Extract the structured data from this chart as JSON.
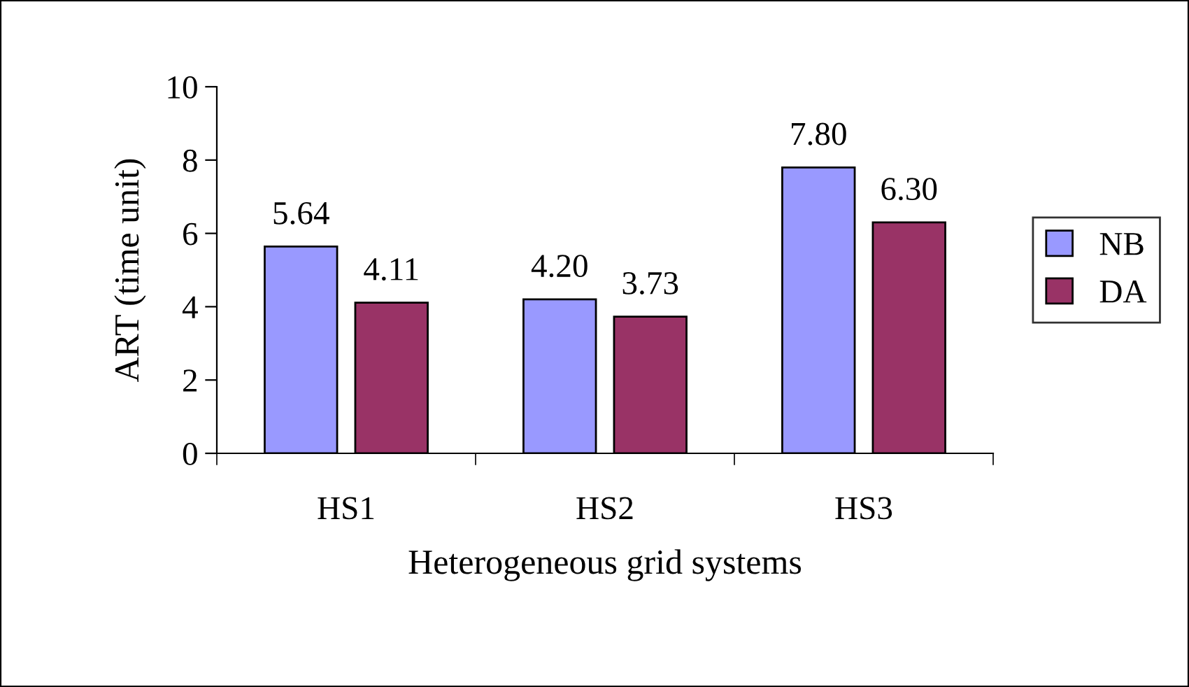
{
  "chart_data": {
    "type": "bar",
    "xlabel": "Heterogeneous grid systems",
    "ylabel": "ART (time unit)",
    "categories": [
      "HS1",
      "HS2",
      "HS3"
    ],
    "series": [
      {
        "name": "NB",
        "color": "#9999ff",
        "values": [
          5.64,
          4.2,
          7.8
        ],
        "value_labels": [
          "5.64",
          "4.20",
          "7.80"
        ]
      },
      {
        "name": "DA",
        "color": "#993366",
        "values": [
          4.11,
          3.73,
          6.3
        ],
        "value_labels": [
          "4.11",
          "3.73",
          "6.30"
        ]
      }
    ],
    "ylim": [
      0,
      10
    ],
    "yticks": [
      0,
      2,
      4,
      6,
      8,
      10
    ],
    "grid": false,
    "legend": "right"
  }
}
